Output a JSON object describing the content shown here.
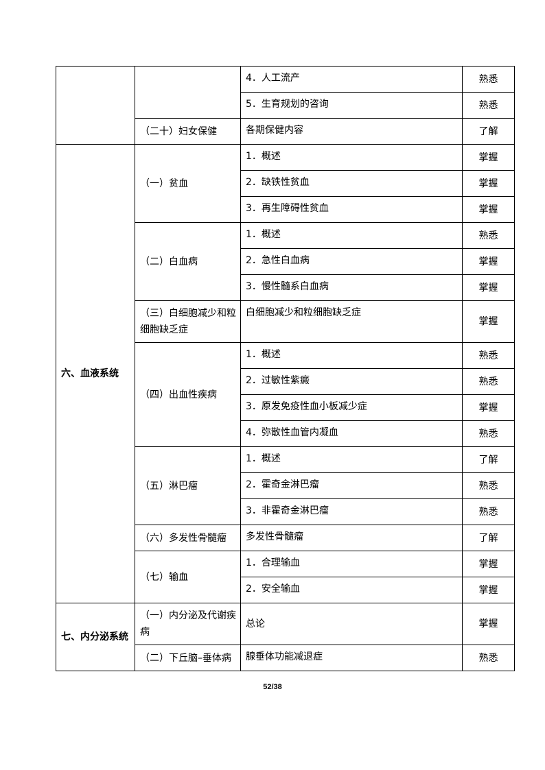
{
  "rows": {
    "r1": {
      "item": "4．人工流产",
      "level": "熟悉"
    },
    "r2": {
      "item": "5．生育规划的咨询",
      "level": "熟悉"
    },
    "r3": {
      "topic": "（二十）妇女保健",
      "item": "各期保健内容",
      "level": "了解"
    }
  },
  "sec6": {
    "title": "六、血液系统",
    "anemia": {
      "topic": "（一）贫血",
      "items": [
        {
          "t": "1．概述",
          "l": "掌握"
        },
        {
          "t": "2．缺铁性贫血",
          "l": "掌握"
        },
        {
          "t": "3．再生障碍性贫血",
          "l": "掌握"
        }
      ]
    },
    "leuk": {
      "topic": "（二）白血病",
      "items": [
        {
          "t": "1．概述",
          "l": "熟悉"
        },
        {
          "t": "2．急性白血病",
          "l": "掌握"
        },
        {
          "t": "3．慢性髓系白血病",
          "l": "掌握"
        }
      ]
    },
    "wbc": {
      "topic": "（三）白细胞减少和粒细胞缺乏症",
      "item": "白细胞减少和粒细胞缺乏症",
      "level": "掌握"
    },
    "bleed": {
      "topic": "（四）出血性疾病",
      "items": [
        {
          "t": "1．概述",
          "l": "熟悉"
        },
        {
          "t": "2．过敏性紫癜",
          "l": "熟悉"
        },
        {
          "t": "3．原发免疫性血小板减少症",
          "l": "掌握"
        },
        {
          "t": "4．弥散性血管内凝血",
          "l": "熟悉"
        }
      ]
    },
    "lymph": {
      "topic": "（五）淋巴瘤",
      "items": [
        {
          "t": "1．概述",
          "l": "了解"
        },
        {
          "t": "2．霍奇金淋巴瘤",
          "l": "熟悉"
        },
        {
          "t": "3．非霍奇金淋巴瘤",
          "l": "熟悉"
        }
      ]
    },
    "mm": {
      "topic": "（六）多发性骨髓瘤",
      "item": "多发性骨髓瘤",
      "level": "了解"
    },
    "trans": {
      "topic": "（七）输血",
      "items": [
        {
          "t": "1．合理输血",
          "l": "掌握"
        },
        {
          "t": "2．安全输血",
          "l": "掌握"
        }
      ]
    }
  },
  "sec7": {
    "title": "七、内分泌系统",
    "endo": {
      "topic": "（一）内分泌及代谢疾病",
      "item": "总论",
      "level": "掌握"
    },
    "pit": {
      "topic": "（二）下丘脑–垂体病",
      "item": "腺垂体功能减退症",
      "level": "熟悉"
    }
  },
  "footer": {
    "page": "52/38"
  }
}
